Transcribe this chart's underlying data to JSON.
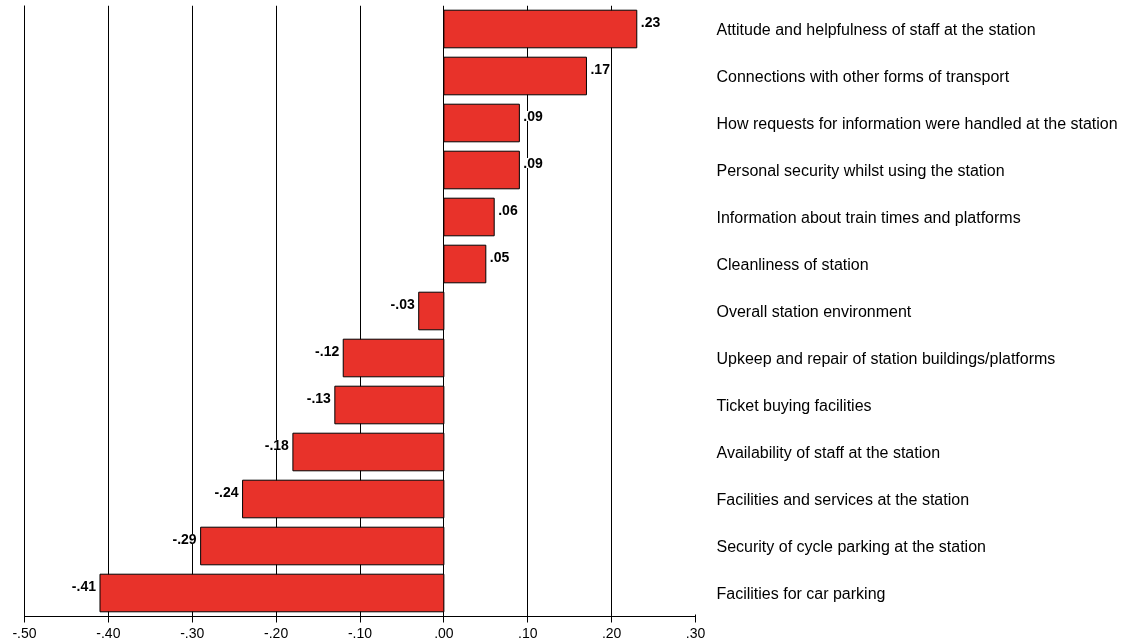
{
  "chart_data": {
    "type": "bar",
    "orientation": "horizontal",
    "categories": [
      "Attitude and helpfulness of staff at the station",
      "Connections with other forms of transport",
      "How requests for information were handled at the station",
      "Personal security whilst using the station",
      "Information about train times and platforms",
      "Cleanliness of station",
      "Overall station environment",
      "Upkeep and repair of station buildings/platforms",
      "Ticket buying facilities",
      "Availability of staff at the station",
      "Facilities and services at the station",
      "Security of cycle parking at the station",
      "Facilities for car parking"
    ],
    "values": [
      0.23,
      0.17,
      0.09,
      0.09,
      0.06,
      0.05,
      -0.03,
      -0.12,
      -0.13,
      -0.18,
      -0.24,
      -0.29,
      -0.41
    ],
    "value_labels": [
      ".23",
      ".17",
      ".09",
      ".09",
      ".06",
      ".05",
      "-.03",
      "-.12",
      "-.13",
      "-.18",
      "-.24",
      "-.29",
      "-.41"
    ],
    "color": "#e8322a",
    "xlim": [
      -0.5,
      0.3
    ],
    "xticks": [
      {
        "value": -0.5,
        "label": "-.50"
      },
      {
        "value": -0.4,
        "label": "-.40"
      },
      {
        "value": -0.3,
        "label": "-.30"
      },
      {
        "value": -0.2,
        "label": "-.20"
      },
      {
        "value": -0.1,
        "label": "-.10"
      },
      {
        "value": 0,
        "label": ".00"
      },
      {
        "value": 0.1,
        "label": ".10"
      },
      {
        "value": 0.2,
        "label": ".20"
      },
      {
        "value": 0.3,
        "label": ".30"
      }
    ],
    "grid": "x"
  }
}
